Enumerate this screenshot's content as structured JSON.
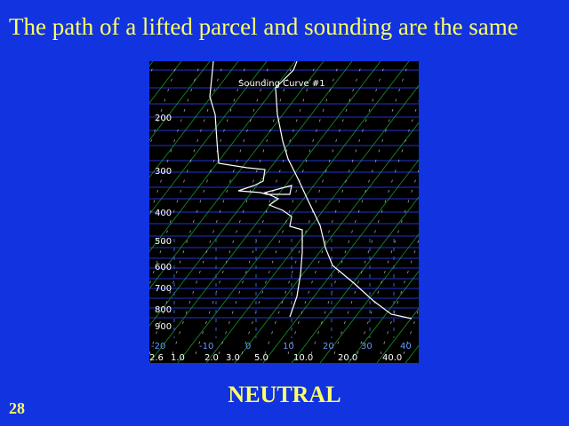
{
  "slide": {
    "title": "The path of a lifted parcel and sounding are the same",
    "caption": "NEUTRAL",
    "number": "28"
  },
  "diagram": {
    "label": "Sounding Curve #1",
    "pressure_labels": [
      "200",
      "300",
      "400",
      "500",
      "600",
      "700",
      "800",
      "900"
    ],
    "temperature_labels": [
      "-20",
      "-10",
      "0",
      "10",
      "20",
      "30",
      "40"
    ],
    "mixing_ratio_labels": [
      "2.6",
      "1.0",
      "2.0",
      "3.0",
      "5.0",
      "10.0",
      "20.0",
      "40.0"
    ],
    "colors": {
      "isobar": "#2233cc",
      "dry_adiabat": "#22aa33",
      "isotherm_tick": "#3366cc",
      "sounding": "#ffffff"
    }
  }
}
